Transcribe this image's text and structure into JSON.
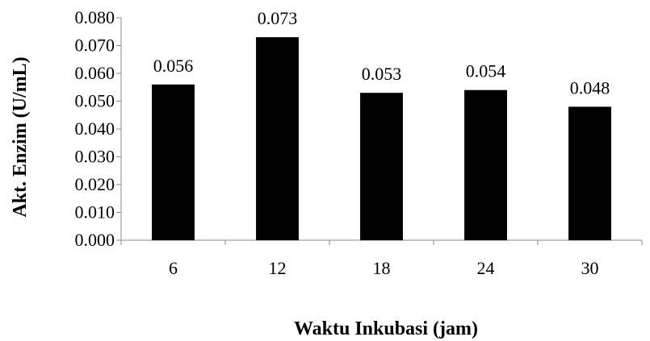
{
  "chart_data": {
    "type": "bar",
    "categories": [
      "6",
      "12",
      "18",
      "24",
      "30"
    ],
    "values": [
      0.056,
      0.073,
      0.053,
      0.054,
      0.048
    ],
    "value_labels": [
      "0.056",
      "0.073",
      "0.053",
      "0.054",
      "0.048"
    ],
    "xlabel": "Waktu Inkubasi (jam)",
    "ylabel": "Akt. Enzim (U/mL)",
    "ylim": [
      0,
      0.08
    ],
    "yticks": [
      "0.000",
      "0.010",
      "0.020",
      "0.030",
      "0.040",
      "0.050",
      "0.060",
      "0.070",
      "0.080"
    ],
    "grid": false,
    "legend": "none",
    "bar_color": "#000000"
  }
}
